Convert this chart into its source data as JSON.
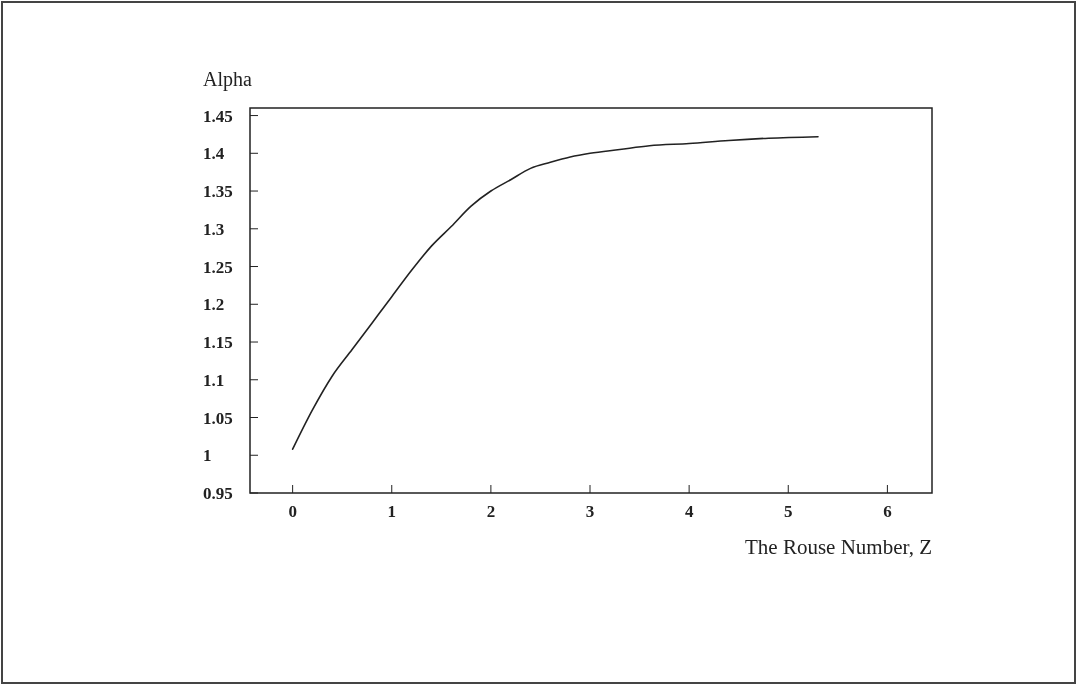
{
  "chart_data": {
    "type": "line",
    "xlabel": "The Rouse Number, Z",
    "ylabel": "Alpha",
    "x": [
      0,
      0.2,
      0.4,
      0.6,
      0.8,
      1,
      1.2,
      1.4,
      1.6,
      1.8,
      2,
      2.2,
      2.4,
      2.6,
      2.8,
      3,
      3.3,
      3.6,
      4,
      4.4,
      4.8,
      5.3
    ],
    "series": [
      {
        "color": "#222222",
        "values": [
          1.008,
          1.06,
          1.105,
          1.14,
          1.175,
          1.21,
          1.245,
          1.277,
          1.303,
          1.33,
          1.35,
          1.365,
          1.38,
          1.388,
          1.395,
          1.4,
          1.405,
          1.41,
          1.413,
          1.417,
          1.42,
          1.422
        ]
      }
    ],
    "xlim": [
      -0.43,
      6.45
    ],
    "ylim": [
      0.95,
      1.46
    ],
    "xticks": [
      0,
      1,
      2,
      3,
      4,
      5,
      6
    ],
    "yticks": [
      {
        "value": 0.95,
        "label": "0.95"
      },
      1,
      1.05,
      {
        "value": 1.1,
        "label": "1.1"
      },
      1.15,
      {
        "value": 1.2,
        "label": "1.2"
      },
      1.25,
      {
        "value": 1.3,
        "label": "1.3"
      },
      1.35,
      {
        "value": 1.4,
        "label": "1.4"
      },
      1.45
    ],
    "grid": false,
    "marker": "none",
    "line_style": "solid"
  }
}
